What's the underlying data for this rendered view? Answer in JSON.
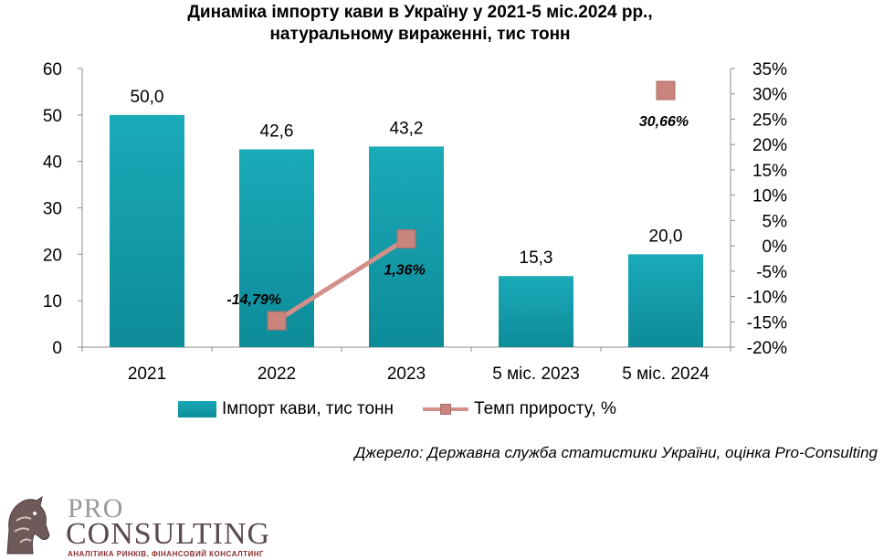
{
  "title": {
    "line1": "Динаміка імпорту кави в Україну у 2021-5 міс.2024 рр.,",
    "line2": "натуральному вираженні, тис тонн"
  },
  "chart_data": {
    "type": "bar",
    "categories": [
      "2021",
      "2022",
      "2023",
      "5 міс. 2023",
      "5 міс. 2024"
    ],
    "series": [
      {
        "name": "Імпорт кави, тис тонн",
        "type": "bar",
        "axis": "left",
        "values": [
          50.0,
          42.6,
          43.2,
          15.3,
          20.0
        ],
        "labels": [
          "50,0",
          "42,6",
          "43,2",
          "15,3",
          "20,0"
        ],
        "color": "#13a0ae"
      },
      {
        "name": "Темп приросту, %",
        "type": "line",
        "axis": "right",
        "values": [
          null,
          -14.79,
          1.36,
          null,
          30.66
        ],
        "labels": [
          "",
          "-14,79%",
          "1,36%",
          "",
          "30,66%"
        ],
        "color": "#c8847d"
      }
    ],
    "ylim_left": [
      0,
      60
    ],
    "yticks_left": [
      "0",
      "10",
      "20",
      "30",
      "40",
      "50",
      "60"
    ],
    "ylim_right": [
      -20,
      35
    ],
    "yticks_right": [
      "-20%",
      "-15%",
      "-10%",
      "-5%",
      "0%",
      "5%",
      "10%",
      "15%",
      "20%",
      "25%",
      "30%",
      "35%"
    ],
    "grid": false,
    "legend": "bottom"
  },
  "legend": {
    "bar_label": "Імпорт кави, тис тонн",
    "line_label": "Темп приросту, %"
  },
  "source": "Джерело: Державна служба статистики України, оцінка Pro-Consulting",
  "logo": {
    "pro": "PRO",
    "consulting": "CONSULTING",
    "tagline": "АНАЛІТИКА РИНКІВ. ФІНАНСОВИЙ КОНСАЛТИНГ"
  }
}
